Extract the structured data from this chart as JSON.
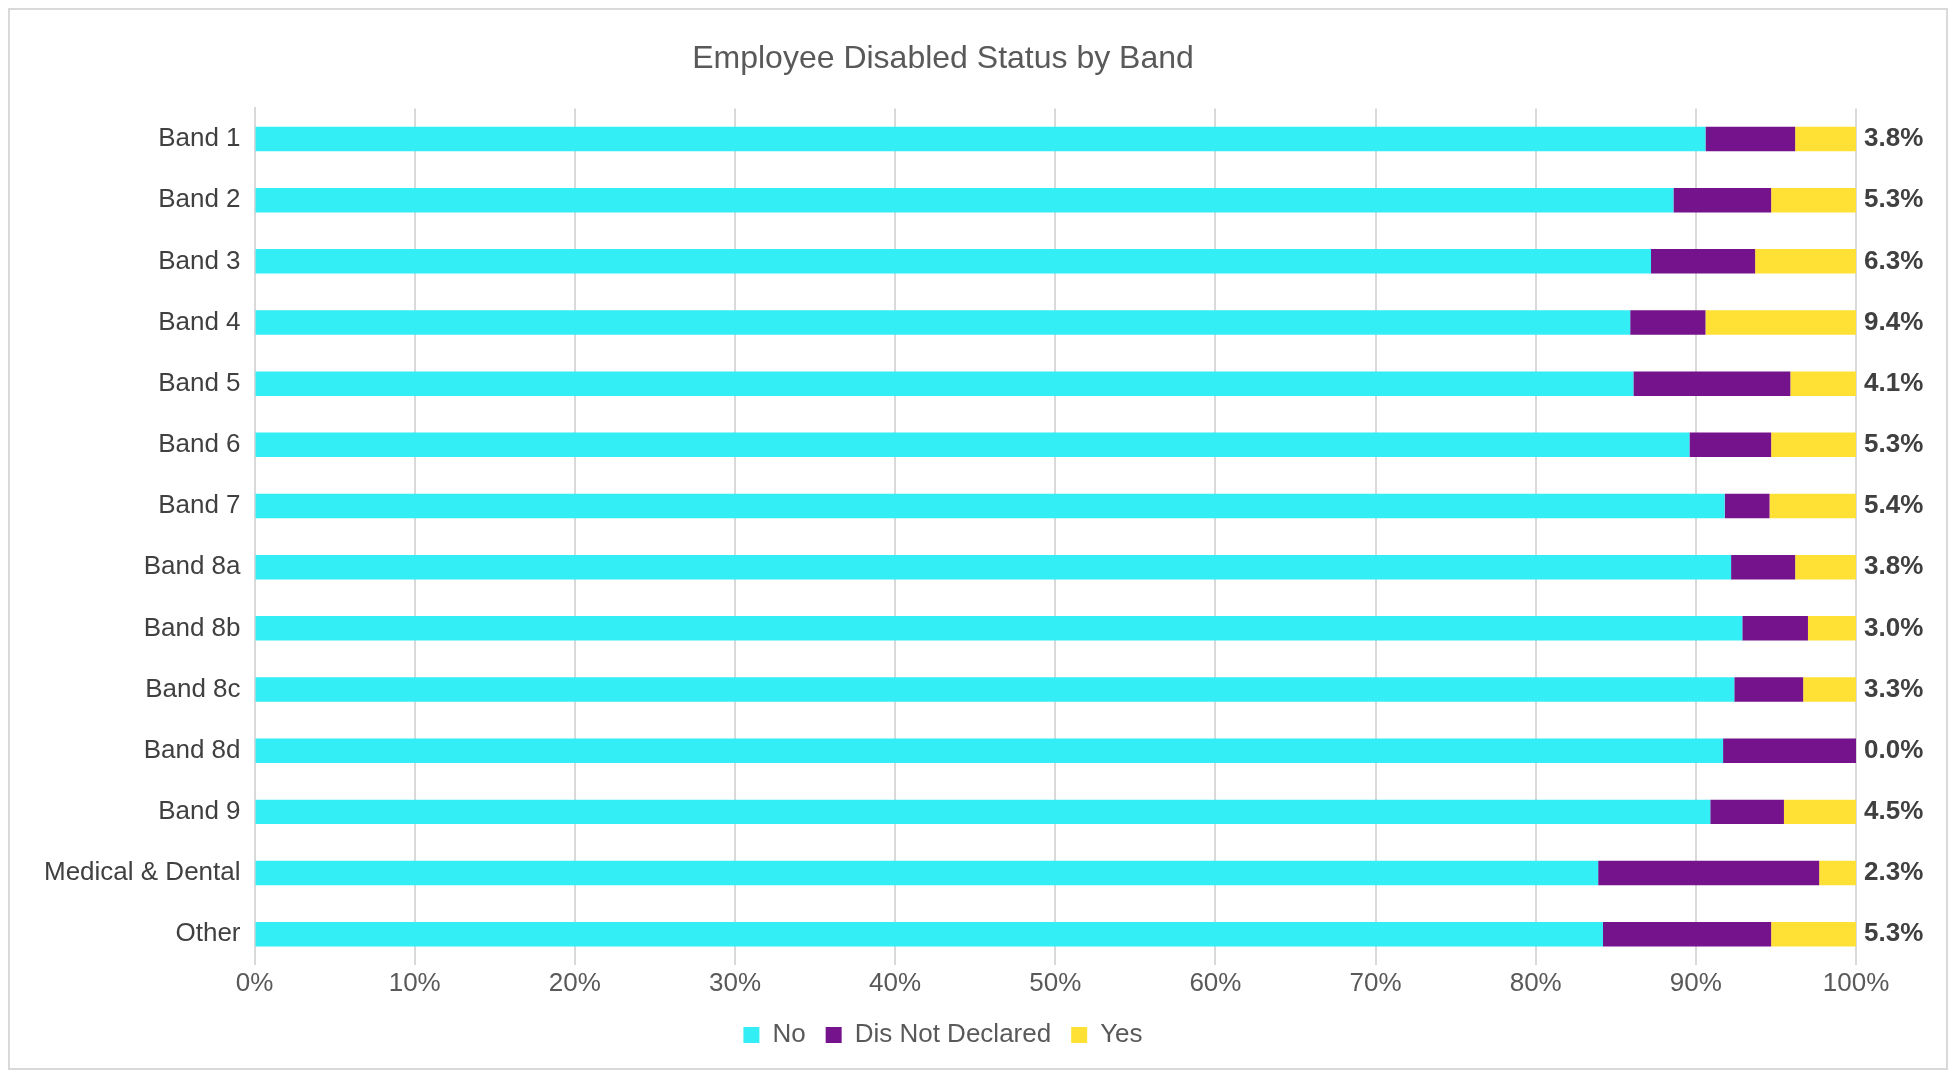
{
  "chart_data": {
    "type": "bar",
    "title": "Employee Disabled Status by Band",
    "orientation": "horizontal",
    "stacked": true,
    "categories": [
      "Band 1",
      "Band 2",
      "Band 3",
      "Band 4",
      "Band 5",
      "Band 6",
      "Band 7",
      "Band 8a",
      "Band 8b",
      "Band 8c",
      "Band 8d",
      "Band 9",
      "Medical & Dental",
      "Other"
    ],
    "series": [
      {
        "name": "No",
        "color": "#33eef5",
        "values": [
          90.6,
          88.6,
          87.2,
          85.9,
          86.1,
          89.6,
          91.8,
          92.2,
          92.9,
          92.4,
          91.7,
          90.9,
          83.9,
          84.2
        ]
      },
      {
        "name": "Dis Not Declared",
        "color": "#74138c",
        "values": [
          5.6,
          6.1,
          6.5,
          4.7,
          9.8,
          5.1,
          2.8,
          4.0,
          4.1,
          4.3,
          8.3,
          4.6,
          13.8,
          10.5
        ]
      },
      {
        "name": "Yes",
        "color": "#ffe135",
        "values": [
          3.8,
          5.3,
          6.3,
          9.4,
          4.1,
          5.3,
          5.4,
          3.8,
          3.0,
          3.3,
          0.0,
          4.5,
          2.3,
          5.3
        ],
        "value_labels": [
          "3.8%",
          "5.3%",
          "6.3%",
          "9.4%",
          "4.1%",
          "5.3%",
          "5.4%",
          "3.8%",
          "3.0%",
          "3.3%",
          "0.0%",
          "4.5%",
          "2.3%",
          "5.3%"
        ]
      }
    ],
    "xlim": [
      0,
      100
    ],
    "xticks": [
      {
        "value": 0,
        "label": "0%"
      },
      {
        "value": 10,
        "label": "10%"
      },
      {
        "value": 20,
        "label": "20%"
      },
      {
        "value": 30,
        "label": "30%"
      },
      {
        "value": 40,
        "label": "40%"
      },
      {
        "value": 50,
        "label": "50%"
      },
      {
        "value": 60,
        "label": "60%"
      },
      {
        "value": 70,
        "label": "70%"
      },
      {
        "value": 80,
        "label": "80%"
      },
      {
        "value": 90,
        "label": "90%"
      },
      {
        "value": 100,
        "label": "100%"
      }
    ],
    "grid": "x",
    "legend": "bottom"
  }
}
